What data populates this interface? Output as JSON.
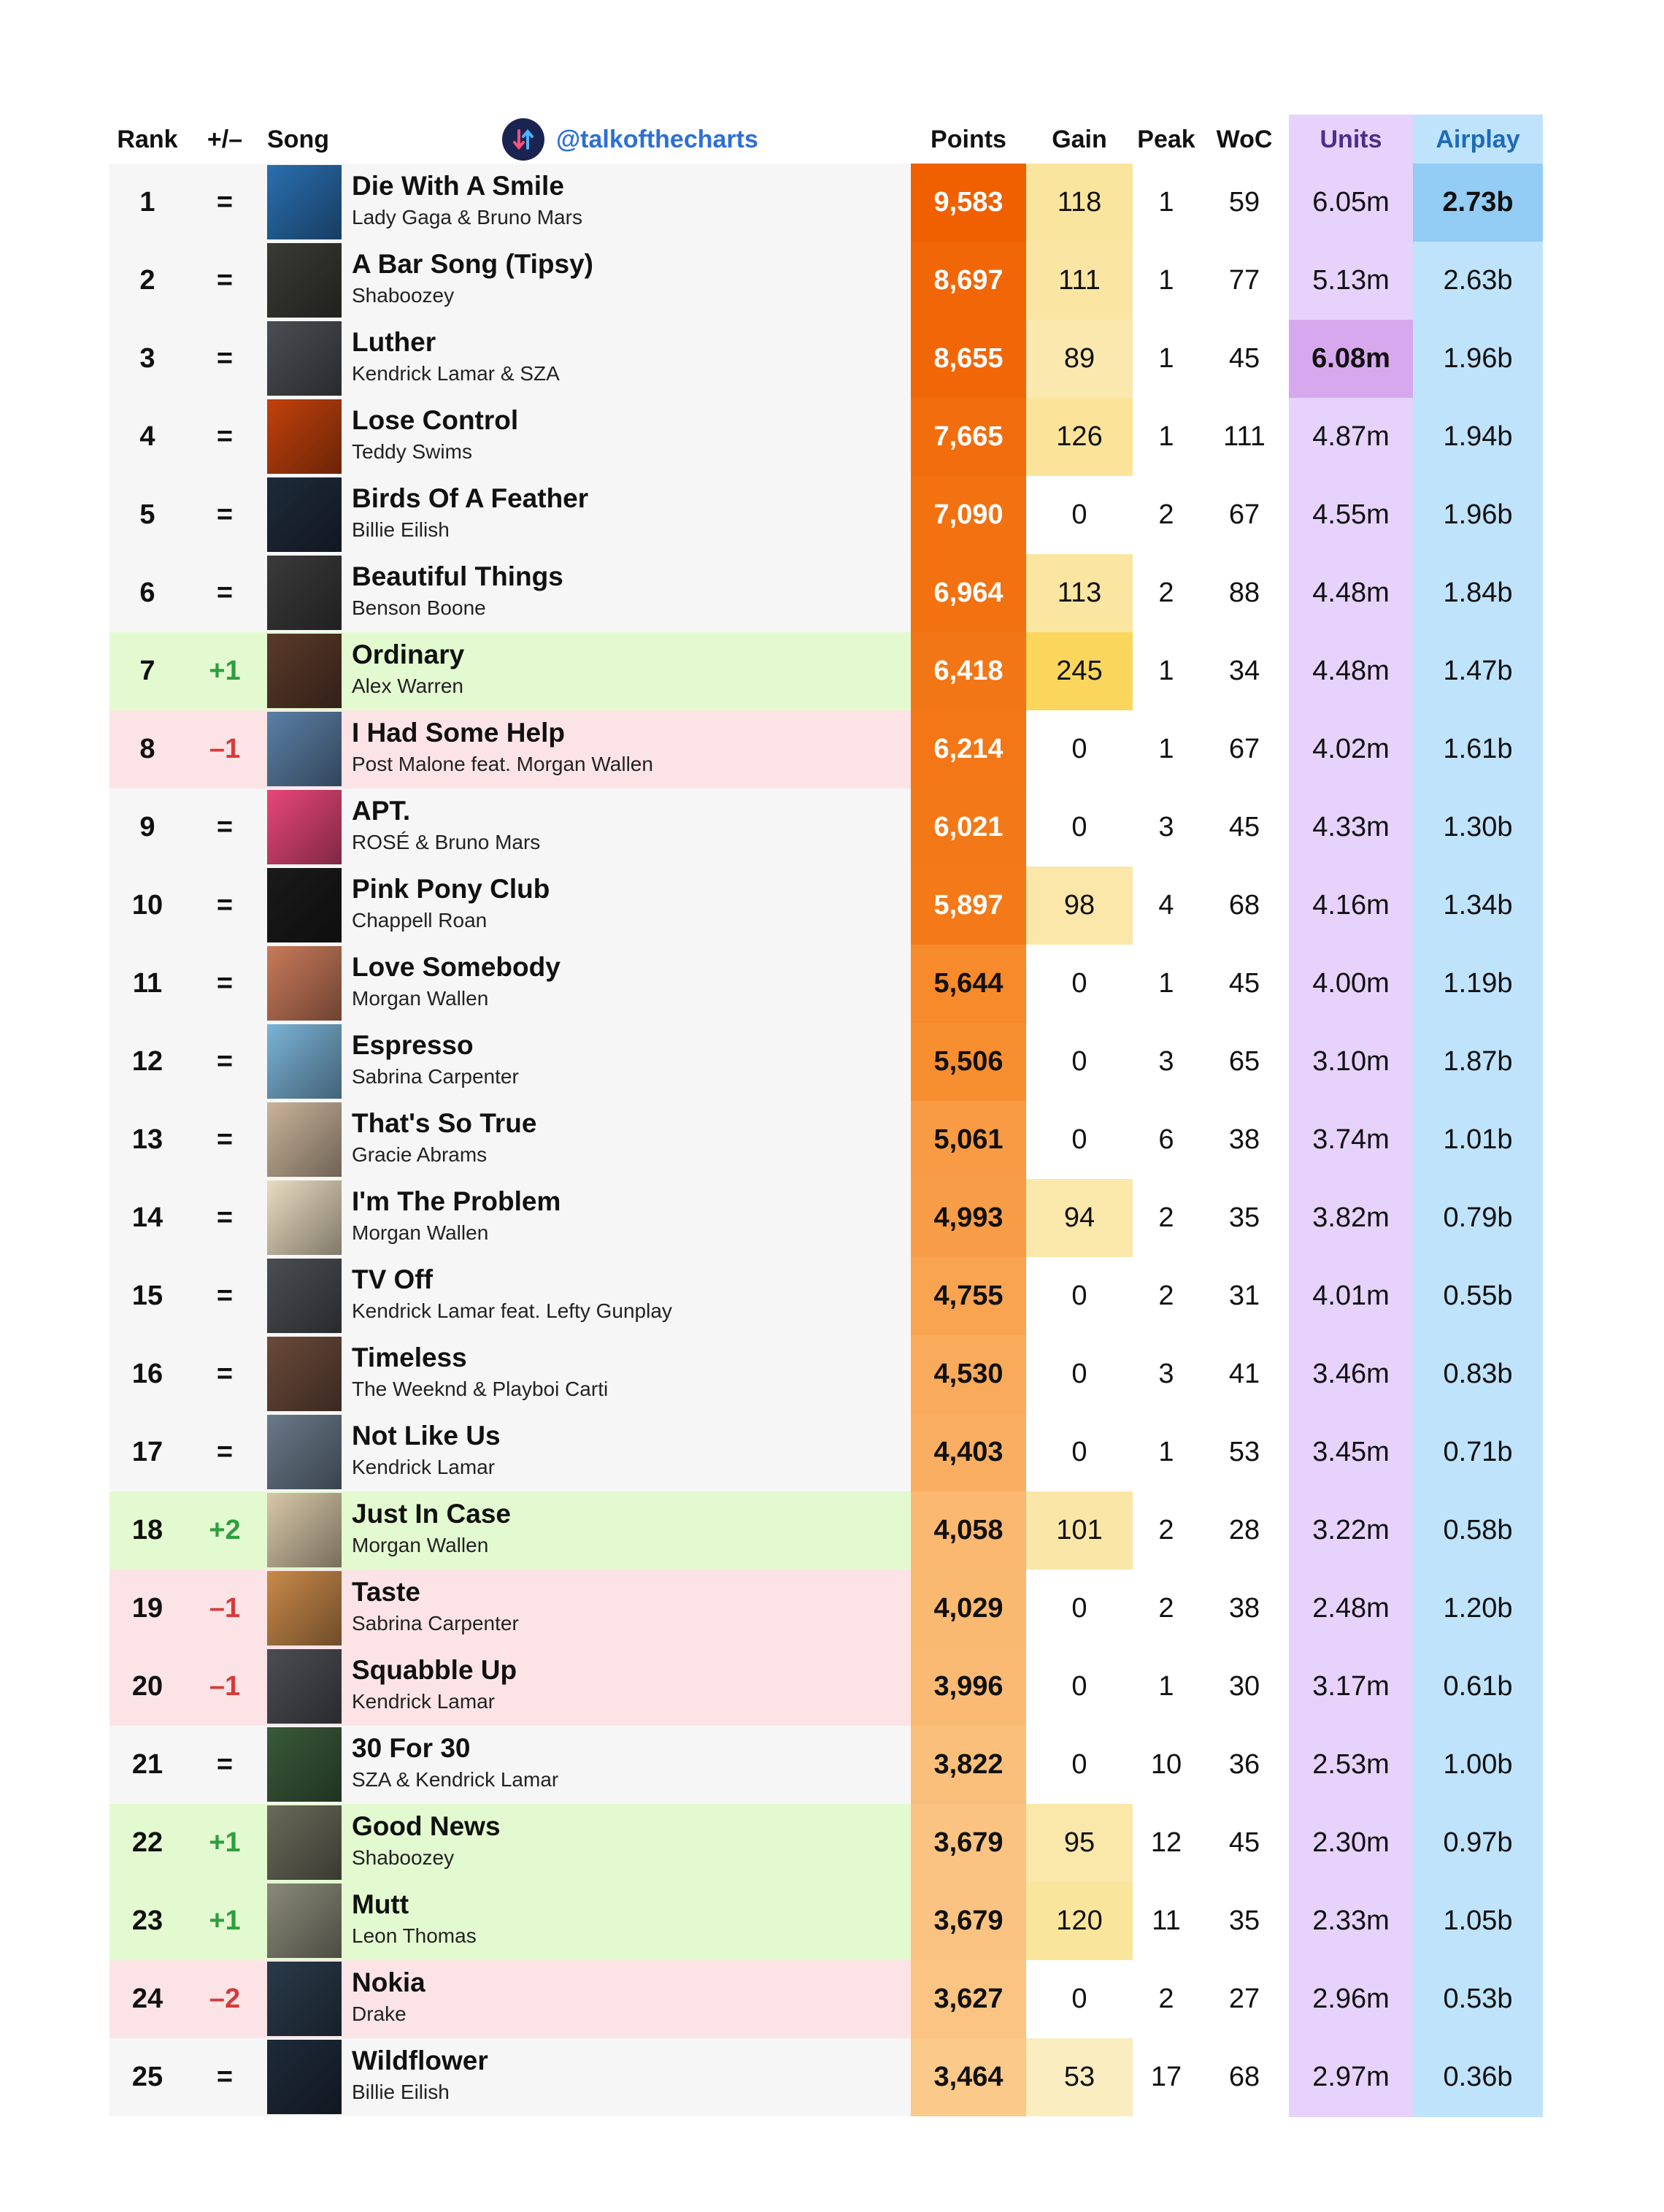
{
  "header": {
    "rank": "Rank",
    "change": "+/–",
    "song": "Song",
    "handle": "@talkofthecharts",
    "points": "Points",
    "gain": "Gain",
    "peak": "Peak",
    "woc": "WoC",
    "units": "Units",
    "airplay": "Airplay"
  },
  "colors": {
    "up": "#2f9e3e",
    "down": "#d73a3a",
    "units_bg": "#e6d2fb",
    "airplay_bg": "#bfe3fb",
    "points_top": "#f26a0a",
    "points_low": "#fbbf7a"
  },
  "rows": [
    {
      "rank": "1",
      "change": "=",
      "title": "Die With A Smile",
      "artist": "Lady Gaga & Bruno Mars",
      "points": "9,583",
      "gain": "118",
      "peak": "1",
      "woc": "59",
      "units": "6.05m",
      "airplay": "2.73b"
    },
    {
      "rank": "2",
      "change": "=",
      "title": "A Bar Song (Tipsy)",
      "artist": "Shaboozey",
      "points": "8,697",
      "gain": "111",
      "peak": "1",
      "woc": "77",
      "units": "5.13m",
      "airplay": "2.63b"
    },
    {
      "rank": "3",
      "change": "=",
      "title": "Luther",
      "artist": "Kendrick Lamar & SZA",
      "points": "8,655",
      "gain": "89",
      "peak": "1",
      "woc": "45",
      "units": "6.08m",
      "airplay": "1.96b"
    },
    {
      "rank": "4",
      "change": "=",
      "title": "Lose Control",
      "artist": "Teddy Swims",
      "points": "7,665",
      "gain": "126",
      "peak": "1",
      "woc": "111",
      "units": "4.87m",
      "airplay": "1.94b"
    },
    {
      "rank": "5",
      "change": "=",
      "title": "Birds Of A Feather",
      "artist": "Billie Eilish",
      "points": "7,090",
      "gain": "0",
      "peak": "2",
      "woc": "67",
      "units": "4.55m",
      "airplay": "1.96b"
    },
    {
      "rank": "6",
      "change": "=",
      "title": "Beautiful Things",
      "artist": "Benson Boone",
      "points": "6,964",
      "gain": "113",
      "peak": "2",
      "woc": "88",
      "units": "4.48m",
      "airplay": "1.84b"
    },
    {
      "rank": "7",
      "change": "+1",
      "title": "Ordinary",
      "artist": "Alex Warren",
      "points": "6,418",
      "gain": "245",
      "peak": "1",
      "woc": "34",
      "units": "4.48m",
      "airplay": "1.47b"
    },
    {
      "rank": "8",
      "change": "–1",
      "title": "I Had Some Help",
      "artist": "Post Malone feat. Morgan Wallen",
      "points": "6,214",
      "gain": "0",
      "peak": "1",
      "woc": "67",
      "units": "4.02m",
      "airplay": "1.61b"
    },
    {
      "rank": "9",
      "change": "=",
      "title": "APT.",
      "artist": "ROSÉ & Bruno Mars",
      "points": "6,021",
      "gain": "0",
      "peak": "3",
      "woc": "45",
      "units": "4.33m",
      "airplay": "1.30b"
    },
    {
      "rank": "10",
      "change": "=",
      "title": "Pink Pony Club",
      "artist": "Chappell Roan",
      "points": "5,897",
      "gain": "98",
      "peak": "4",
      "woc": "68",
      "units": "4.16m",
      "airplay": "1.34b"
    },
    {
      "rank": "11",
      "change": "=",
      "title": "Love Somebody",
      "artist": "Morgan Wallen",
      "points": "5,644",
      "gain": "0",
      "peak": "1",
      "woc": "45",
      "units": "4.00m",
      "airplay": "1.19b"
    },
    {
      "rank": "12",
      "change": "=",
      "title": "Espresso",
      "artist": "Sabrina Carpenter",
      "points": "5,506",
      "gain": "0",
      "peak": "3",
      "woc": "65",
      "units": "3.10m",
      "airplay": "1.87b"
    },
    {
      "rank": "13",
      "change": "=",
      "title": "That's So True",
      "artist": "Gracie Abrams",
      "points": "5,061",
      "gain": "0",
      "peak": "6",
      "woc": "38",
      "units": "3.74m",
      "airplay": "1.01b"
    },
    {
      "rank": "14",
      "change": "=",
      "title": "I'm The Problem",
      "artist": "Morgan Wallen",
      "points": "4,993",
      "gain": "94",
      "peak": "2",
      "woc": "35",
      "units": "3.82m",
      "airplay": "0.79b"
    },
    {
      "rank": "15",
      "change": "=",
      "title": "TV Off",
      "artist": "Kendrick Lamar feat. Lefty Gunplay",
      "points": "4,755",
      "gain": "0",
      "peak": "2",
      "woc": "31",
      "units": "4.01m",
      "airplay": "0.55b"
    },
    {
      "rank": "16",
      "change": "=",
      "title": "Timeless",
      "artist": "The Weeknd & Playboi Carti",
      "points": "4,530",
      "gain": "0",
      "peak": "3",
      "woc": "41",
      "units": "3.46m",
      "airplay": "0.83b"
    },
    {
      "rank": "17",
      "change": "=",
      "title": "Not Like Us",
      "artist": "Kendrick Lamar",
      "points": "4,403",
      "gain": "0",
      "peak": "1",
      "woc": "53",
      "units": "3.45m",
      "airplay": "0.71b"
    },
    {
      "rank": "18",
      "change": "+2",
      "title": "Just In Case",
      "artist": "Morgan Wallen",
      "points": "4,058",
      "gain": "101",
      "peak": "2",
      "woc": "28",
      "units": "3.22m",
      "airplay": "0.58b"
    },
    {
      "rank": "19",
      "change": "–1",
      "title": "Taste",
      "artist": "Sabrina Carpenter",
      "points": "4,029",
      "gain": "0",
      "peak": "2",
      "woc": "38",
      "units": "2.48m",
      "airplay": "1.20b"
    },
    {
      "rank": "20",
      "change": "–1",
      "title": "Squabble Up",
      "artist": "Kendrick Lamar",
      "points": "3,996",
      "gain": "0",
      "peak": "1",
      "woc": "30",
      "units": "3.17m",
      "airplay": "0.61b"
    },
    {
      "rank": "21",
      "change": "=",
      "title": "30 For 30",
      "artist": "SZA & Kendrick Lamar",
      "points": "3,822",
      "gain": "0",
      "peak": "10",
      "woc": "36",
      "units": "2.53m",
      "airplay": "1.00b"
    },
    {
      "rank": "22",
      "change": "+1",
      "title": "Good News",
      "artist": "Shaboozey",
      "points": "3,679",
      "gain": "95",
      "peak": "12",
      "woc": "45",
      "units": "2.30m",
      "airplay": "0.97b"
    },
    {
      "rank": "23",
      "change": "+1",
      "title": "Mutt",
      "artist": "Leon Thomas",
      "points": "3,679",
      "gain": "120",
      "peak": "11",
      "woc": "35",
      "units": "2.33m",
      "airplay": "1.05b"
    },
    {
      "rank": "24",
      "change": "–2",
      "title": "Nokia",
      "artist": "Drake",
      "points": "3,627",
      "gain": "0",
      "peak": "2",
      "woc": "27",
      "units": "2.96m",
      "airplay": "0.53b"
    },
    {
      "rank": "25",
      "change": "=",
      "title": "Wildflower",
      "artist": "Billie Eilish",
      "points": "3,464",
      "gain": "53",
      "peak": "17",
      "woc": "68",
      "units": "2.97m",
      "airplay": "0.36b"
    }
  ]
}
